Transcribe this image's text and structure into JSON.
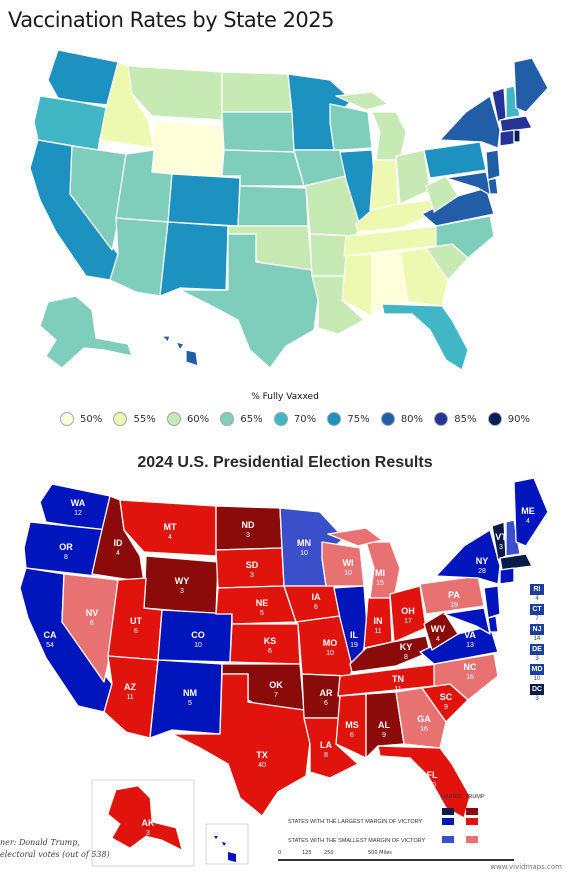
{
  "vaccination": {
    "title": "Vaccination Rates by State 2025",
    "legend_label": "% Fully Vaxxed",
    "legend": [
      {
        "label": "50%",
        "color": "#ffffd9"
      },
      {
        "label": "55%",
        "color": "#edf8b1"
      },
      {
        "label": "60%",
        "color": "#c7e9b4"
      },
      {
        "label": "65%",
        "color": "#7fcdbb"
      },
      {
        "label": "70%",
        "color": "#41b6c4"
      },
      {
        "label": "75%",
        "color": "#1d91c0"
      },
      {
        "label": "80%",
        "color": "#225ea8"
      },
      {
        "label": "85%",
        "color": "#253494"
      },
      {
        "label": "90%",
        "color": "#081d58"
      }
    ]
  },
  "election": {
    "title": "2024 U.S. Presidential Election Results",
    "states": [
      {
        "abbr": "WA",
        "ev": "12"
      },
      {
        "abbr": "OR",
        "ev": "8"
      },
      {
        "abbr": "CA",
        "ev": "54"
      },
      {
        "abbr": "ID",
        "ev": "4"
      },
      {
        "abbr": "NV",
        "ev": "6"
      },
      {
        "abbr": "MT",
        "ev": "4"
      },
      {
        "abbr": "WY",
        "ev": "3"
      },
      {
        "abbr": "UT",
        "ev": "6"
      },
      {
        "abbr": "AZ",
        "ev": "11"
      },
      {
        "abbr": "CO",
        "ev": "10"
      },
      {
        "abbr": "NM",
        "ev": "5"
      },
      {
        "abbr": "ND",
        "ev": "3"
      },
      {
        "abbr": "SD",
        "ev": "3"
      },
      {
        "abbr": "NE",
        "ev": "5"
      },
      {
        "abbr": "KS",
        "ev": "6"
      },
      {
        "abbr": "OK",
        "ev": "7"
      },
      {
        "abbr": "TX",
        "ev": "40"
      },
      {
        "abbr": "MN",
        "ev": "10"
      },
      {
        "abbr": "IA",
        "ev": "6"
      },
      {
        "abbr": "MO",
        "ev": "10"
      },
      {
        "abbr": "AR",
        "ev": "6"
      },
      {
        "abbr": "LA",
        "ev": "8"
      },
      {
        "abbr": "WI",
        "ev": "10"
      },
      {
        "abbr": "IL",
        "ev": "19"
      },
      {
        "abbr": "MI",
        "ev": "15"
      },
      {
        "abbr": "IN",
        "ev": "11"
      },
      {
        "abbr": "OH",
        "ev": "17"
      },
      {
        "abbr": "KY",
        "ev": "8"
      },
      {
        "abbr": "TN",
        "ev": "11"
      },
      {
        "abbr": "MS",
        "ev": "6"
      },
      {
        "abbr": "AL",
        "ev": "9"
      },
      {
        "abbr": "GA",
        "ev": "16"
      },
      {
        "abbr": "FL",
        "ev": "30"
      },
      {
        "abbr": "SC",
        "ev": "9"
      },
      {
        "abbr": "NC",
        "ev": "16"
      },
      {
        "abbr": "VA",
        "ev": "13"
      },
      {
        "abbr": "WV",
        "ev": "4"
      },
      {
        "abbr": "PA",
        "ev": "19"
      },
      {
        "abbr": "NY",
        "ev": "28"
      },
      {
        "abbr": "VT",
        "ev": "3"
      },
      {
        "abbr": "ME",
        "ev": "4"
      },
      {
        "abbr": "AK",
        "ev": "3"
      }
    ],
    "side_states": [
      {
        "abbr": "RI",
        "ev": "4"
      },
      {
        "abbr": "CT",
        "ev": "7"
      },
      {
        "abbr": "NJ",
        "ev": "14"
      },
      {
        "abbr": "DE",
        "ev": "3"
      },
      {
        "abbr": "MD",
        "ev": "10"
      },
      {
        "abbr": "DC",
        "ev": "3"
      }
    ],
    "key": {
      "harris": "HARRIS",
      "trump": "TRUMP",
      "largest": "STATES WITH THE LARGEST MARGIN OF VICTORY",
      "smallest": "STATES WITH THE SMALLEST MARGIN OF VICTORY",
      "colors": {
        "harris_large": "#0a1a4a",
        "harris": "#0015bc",
        "harris_small": "#3a4fc9",
        "trump_large": "#8b0a0a",
        "trump": "#e0130d",
        "trump_small": "#e87272"
      }
    },
    "scale": [
      "0",
      "125",
      "250",
      "500 Miles"
    ],
    "credit_line1": "ner: Donald Trump,",
    "credit_line2": "electoral votes (out of 538)",
    "watermark": "www.vividmaps.com"
  }
}
